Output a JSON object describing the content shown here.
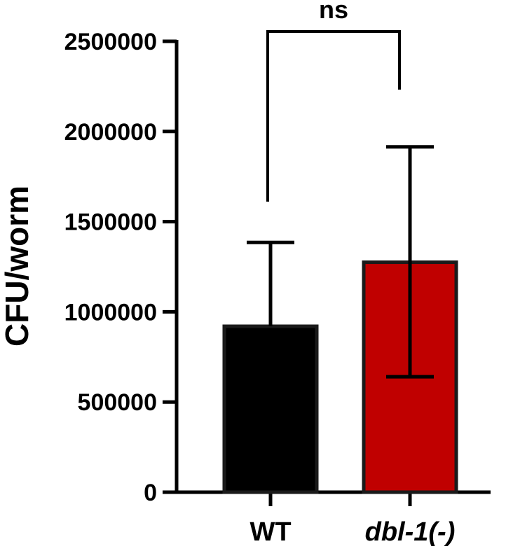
{
  "chart_data": {
    "type": "bar",
    "categories": [
      "WT",
      "dbl-1(-)"
    ],
    "category_italic": [
      false,
      true
    ],
    "values": [
      920000,
      1275000
    ],
    "error_upper": [
      1385000,
      1915000
    ],
    "error_lower": [
      null,
      640000
    ],
    "bar_colors": [
      "#000000",
      "#c00000"
    ],
    "ylabel": "CFU/worm",
    "xlabel": "",
    "title": "",
    "ylim": [
      0,
      2500000
    ],
    "yticks": [
      0,
      500000,
      1000000,
      1500000,
      2000000,
      2500000
    ],
    "ytick_labels": [
      "0",
      "500000",
      "1000000",
      "1500000",
      "2000000",
      "2500000"
    ],
    "significance": {
      "label": "ns",
      "between": [
        0,
        1
      ]
    },
    "grid": false,
    "legend": "none"
  }
}
